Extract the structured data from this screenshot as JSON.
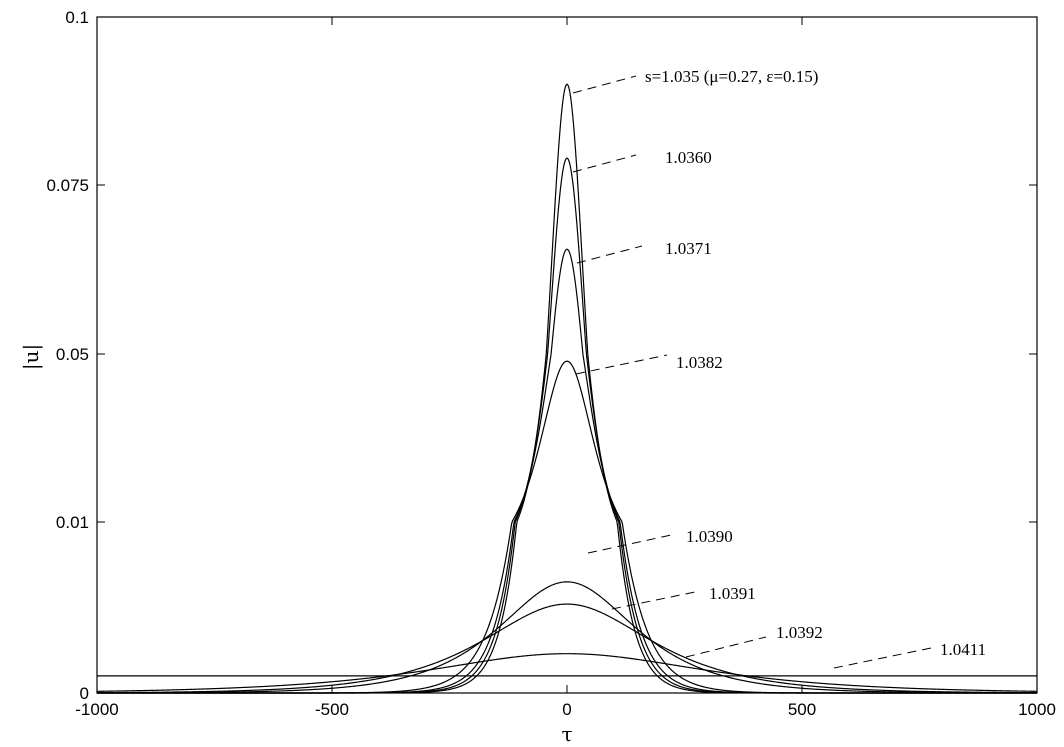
{
  "chart_data": {
    "type": "line",
    "title": "",
    "xlabel": "τ",
    "ylabel": "|u|",
    "xlim": [
      -1000,
      1000
    ],
    "y_axis_ticks": [
      {
        "label": "0",
        "value": 0
      },
      {
        "label": "0.01",
        "value": 0.01
      },
      {
        "label": "0.05",
        "value": 0.05
      },
      {
        "label": "0.075",
        "value": 0.075
      },
      {
        "label": "0.1",
        "value": 0.1
      }
    ],
    "x_ticks": [
      "-1000",
      "-500",
      "0",
      "500",
      "1000"
    ],
    "x_tick_values": [
      -1000,
      -500,
      0,
      500,
      1000
    ],
    "grid": false,
    "legend": "none",
    "series": [
      {
        "label": "s=1.035  (μ=0.27, ε=0.15)",
        "peak": 0.09,
        "width": 37,
        "shape": "sech"
      },
      {
        "label": "1.0360",
        "peak": 0.079,
        "width": 40,
        "shape": "sech"
      },
      {
        "label": "1.0371",
        "peak": 0.0655,
        "width": 44,
        "shape": "sech"
      },
      {
        "label": "1.0382",
        "peak": 0.0483,
        "width": 52,
        "shape": "sech"
      },
      {
        "label": "1.0390",
        "peak": 0.0065,
        "width": 130,
        "shape": "sech"
      },
      {
        "label": "1.0391",
        "peak": 0.0052,
        "width": 160,
        "shape": "sech"
      },
      {
        "label": "1.0392",
        "peak": 0.0023,
        "width": 260,
        "shape": "sech"
      },
      {
        "label": "1.0411",
        "peak": 0.001,
        "width": null,
        "shape": "flat"
      }
    ]
  }
}
